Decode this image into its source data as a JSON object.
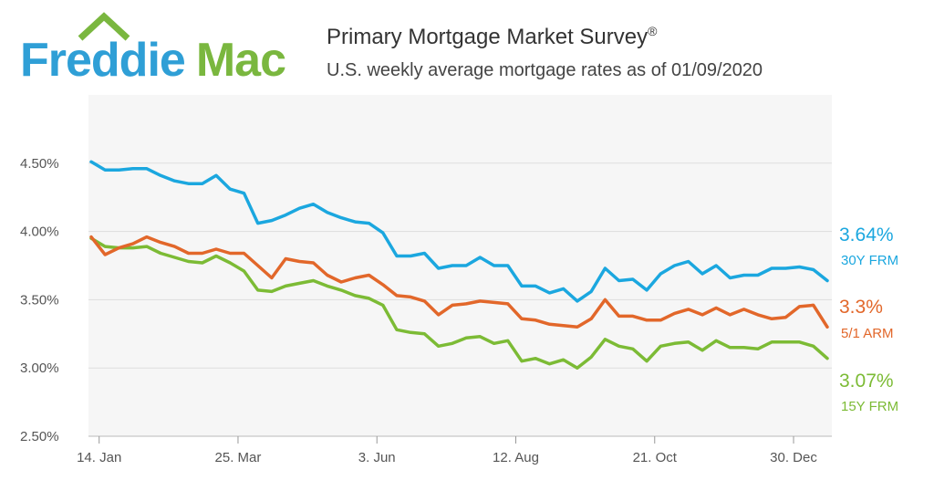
{
  "logo": {
    "freddie": "Freddie",
    "mac": "Mac"
  },
  "header": {
    "title": "Primary Mortgage Market Survey",
    "title_mark": "®",
    "subtitle": "U.S. weekly average mortgage rates as of 01/09/2020"
  },
  "colors": {
    "frm30": "#1ba7df",
    "arm51": "#e2672a",
    "frm15": "#7cbb35",
    "grid": "#dddddd",
    "axis": "#555555"
  },
  "chart_data": {
    "type": "line",
    "title": "Primary Mortgage Market Survey",
    "subtitle": "U.S. weekly average mortgage rates as of 01/09/2020",
    "xlabel": "",
    "ylabel": "",
    "x_ticks": [
      "14. Jan",
      "25. Mar",
      "3. Jun",
      "12. Aug",
      "21. Oct",
      "30. Dec"
    ],
    "y_ticks": [
      "2.50%",
      "3.00%",
      "3.50%",
      "4.00%",
      "4.50%"
    ],
    "ylim": [
      2.5,
      5.0
    ],
    "start_date": "2019-01-10",
    "interval_days": 7,
    "grid": true,
    "series": [
      {
        "name": "30Y FRM",
        "latest_label": "3.64%",
        "color": "#1ba7df",
        "values": [
          4.51,
          4.45,
          4.45,
          4.46,
          4.46,
          4.41,
          4.37,
          4.35,
          4.35,
          4.41,
          4.31,
          4.28,
          4.06,
          4.08,
          4.12,
          4.17,
          4.2,
          4.14,
          4.1,
          4.07,
          4.06,
          3.99,
          3.82,
          3.82,
          3.84,
          3.73,
          3.75,
          3.75,
          3.81,
          3.75,
          3.75,
          3.6,
          3.6,
          3.55,
          3.58,
          3.49,
          3.56,
          3.73,
          3.64,
          3.65,
          3.57,
          3.69,
          3.75,
          3.78,
          3.69,
          3.75,
          3.66,
          3.68,
          3.68,
          3.73,
          3.73,
          3.74,
          3.72,
          3.64
        ]
      },
      {
        "name": "5/1 ARM",
        "latest_label": "3.3%",
        "color": "#e2672a",
        "values": [
          3.96,
          3.83,
          3.88,
          3.91,
          3.96,
          3.92,
          3.89,
          3.84,
          3.84,
          3.87,
          3.84,
          3.84,
          3.75,
          3.66,
          3.8,
          3.78,
          3.77,
          3.68,
          3.63,
          3.66,
          3.68,
          3.61,
          3.53,
          3.52,
          3.49,
          3.39,
          3.46,
          3.47,
          3.49,
          3.48,
          3.47,
          3.36,
          3.35,
          3.32,
          3.31,
          3.3,
          3.36,
          3.5,
          3.38,
          3.38,
          3.35,
          3.35,
          3.4,
          3.43,
          3.39,
          3.44,
          3.39,
          3.43,
          3.39,
          3.36,
          3.37,
          3.45,
          3.46,
          3.3
        ]
      },
      {
        "name": "15Y FRM",
        "latest_label": "3.07%",
        "color": "#7cbb35",
        "values": [
          3.95,
          3.89,
          3.88,
          3.88,
          3.89,
          3.84,
          3.81,
          3.78,
          3.77,
          3.82,
          3.77,
          3.71,
          3.57,
          3.56,
          3.6,
          3.62,
          3.64,
          3.6,
          3.57,
          3.53,
          3.51,
          3.46,
          3.28,
          3.26,
          3.25,
          3.16,
          3.18,
          3.22,
          3.23,
          3.18,
          3.2,
          3.05,
          3.07,
          3.03,
          3.06,
          3.0,
          3.08,
          3.21,
          3.16,
          3.14,
          3.05,
          3.16,
          3.18,
          3.19,
          3.13,
          3.2,
          3.15,
          3.15,
          3.14,
          3.19,
          3.19,
          3.19,
          3.16,
          3.07
        ]
      }
    ]
  }
}
